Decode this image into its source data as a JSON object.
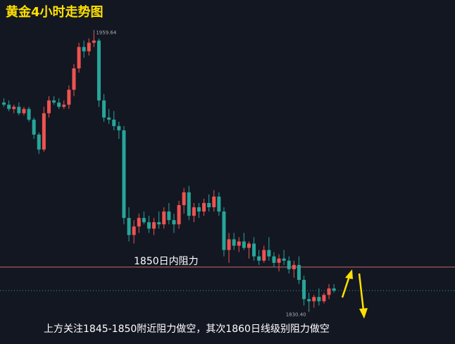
{
  "chart_data": {
    "type": "candlestick",
    "title": "黄金4小时走势图",
    "footnote": "上方关注1845-1850附近阻力做空，其次1860日线级别阻力做空",
    "ylim": [
      1814,
      1975
    ],
    "up_color": "#ef5350",
    "down_color": "#26a69a",
    "candles": [
      [
        1927,
        1929,
        1925,
        1926
      ],
      [
        1926,
        1928,
        1923,
        1924
      ],
      [
        1924,
        1926,
        1922,
        1925
      ],
      [
        1925,
        1927,
        1921,
        1922
      ],
      [
        1922,
        1925,
        1921,
        1924
      ],
      [
        1924,
        1925,
        1918,
        1919
      ],
      [
        1919,
        1920,
        1910,
        1912
      ],
      [
        1912,
        1913,
        1903,
        1905
      ],
      [
        1905,
        1925,
        1904,
        1922
      ],
      [
        1922,
        1930,
        1920,
        1928
      ],
      [
        1928,
        1930,
        1926,
        1927
      ],
      [
        1927,
        1929,
        1924,
        1925
      ],
      [
        1925,
        1928,
        1924,
        1926
      ],
      [
        1926,
        1935,
        1924,
        1933
      ],
      [
        1933,
        1945,
        1930,
        1943
      ],
      [
        1943,
        1955,
        1941,
        1953
      ],
      [
        1953,
        1956,
        1948,
        1951
      ],
      [
        1951,
        1957,
        1949,
        1955
      ],
      [
        1955,
        1959.64,
        1953,
        1956
      ],
      [
        1956,
        1957,
        1925,
        1928
      ],
      [
        1928,
        1931,
        1918,
        1920
      ],
      [
        1920,
        1924,
        1917,
        1919
      ],
      [
        1919,
        1923,
        1914,
        1916
      ],
      [
        1916,
        1918,
        1910,
        1914
      ],
      [
        1914,
        1916,
        1870,
        1873
      ],
      [
        1873,
        1878,
        1862,
        1865
      ],
      [
        1865,
        1872,
        1861,
        1869
      ],
      [
        1869,
        1875,
        1866,
        1873
      ],
      [
        1873,
        1876,
        1870,
        1871
      ],
      [
        1871,
        1874,
        1866,
        1868
      ],
      [
        1868,
        1873,
        1865,
        1871
      ],
      [
        1871,
        1876,
        1868,
        1870
      ],
      [
        1870,
        1878,
        1868,
        1876
      ],
      [
        1876,
        1880,
        1870,
        1872
      ],
      [
        1872,
        1875,
        1866,
        1870
      ],
      [
        1870,
        1881,
        1868,
        1879
      ],
      [
        1879,
        1887,
        1875,
        1885
      ],
      [
        1885,
        1888,
        1872,
        1874
      ],
      [
        1874,
        1880,
        1871,
        1878
      ],
      [
        1878,
        1880,
        1873,
        1876
      ],
      [
        1876,
        1882,
        1874,
        1880
      ],
      [
        1880,
        1884,
        1876,
        1878
      ],
      [
        1878,
        1886,
        1876,
        1883
      ],
      [
        1883,
        1885,
        1874,
        1876
      ],
      [
        1876,
        1878,
        1855,
        1858
      ],
      [
        1858,
        1866,
        1852,
        1863
      ],
      [
        1863,
        1866,
        1858,
        1860
      ],
      [
        1860,
        1864,
        1857,
        1862
      ],
      [
        1862,
        1866,
        1858,
        1859
      ],
      [
        1859,
        1862,
        1854,
        1861
      ],
      [
        1861,
        1864,
        1853,
        1855
      ],
      [
        1855,
        1858,
        1851,
        1853
      ],
      [
        1853,
        1860,
        1852,
        1858
      ],
      [
        1858,
        1864,
        1853,
        1855
      ],
      [
        1855,
        1857,
        1850,
        1852
      ],
      [
        1852,
        1856,
        1848,
        1854
      ],
      [
        1854,
        1858,
        1851,
        1853
      ],
      [
        1853,
        1855,
        1847,
        1849
      ],
      [
        1849,
        1853,
        1845,
        1851
      ],
      [
        1851,
        1855,
        1842,
        1844
      ],
      [
        1844,
        1846,
        1832,
        1835
      ],
      [
        1835,
        1838,
        1830.4,
        1834
      ],
      [
        1834,
        1837,
        1831,
        1836
      ],
      [
        1836,
        1840,
        1832,
        1834
      ],
      [
        1834,
        1838,
        1833,
        1837
      ],
      [
        1837,
        1842,
        1835,
        1840
      ],
      [
        1840,
        1842,
        1838,
        1839
      ]
    ],
    "extreme_labels": [
      {
        "value": 1959.64,
        "label": "1959.64"
      },
      {
        "value": 1830.4,
        "label": "1830.40"
      }
    ],
    "resistance": {
      "value": 1850,
      "label": "1850日内阻力",
      "color": "#c46a6a"
    }
  }
}
